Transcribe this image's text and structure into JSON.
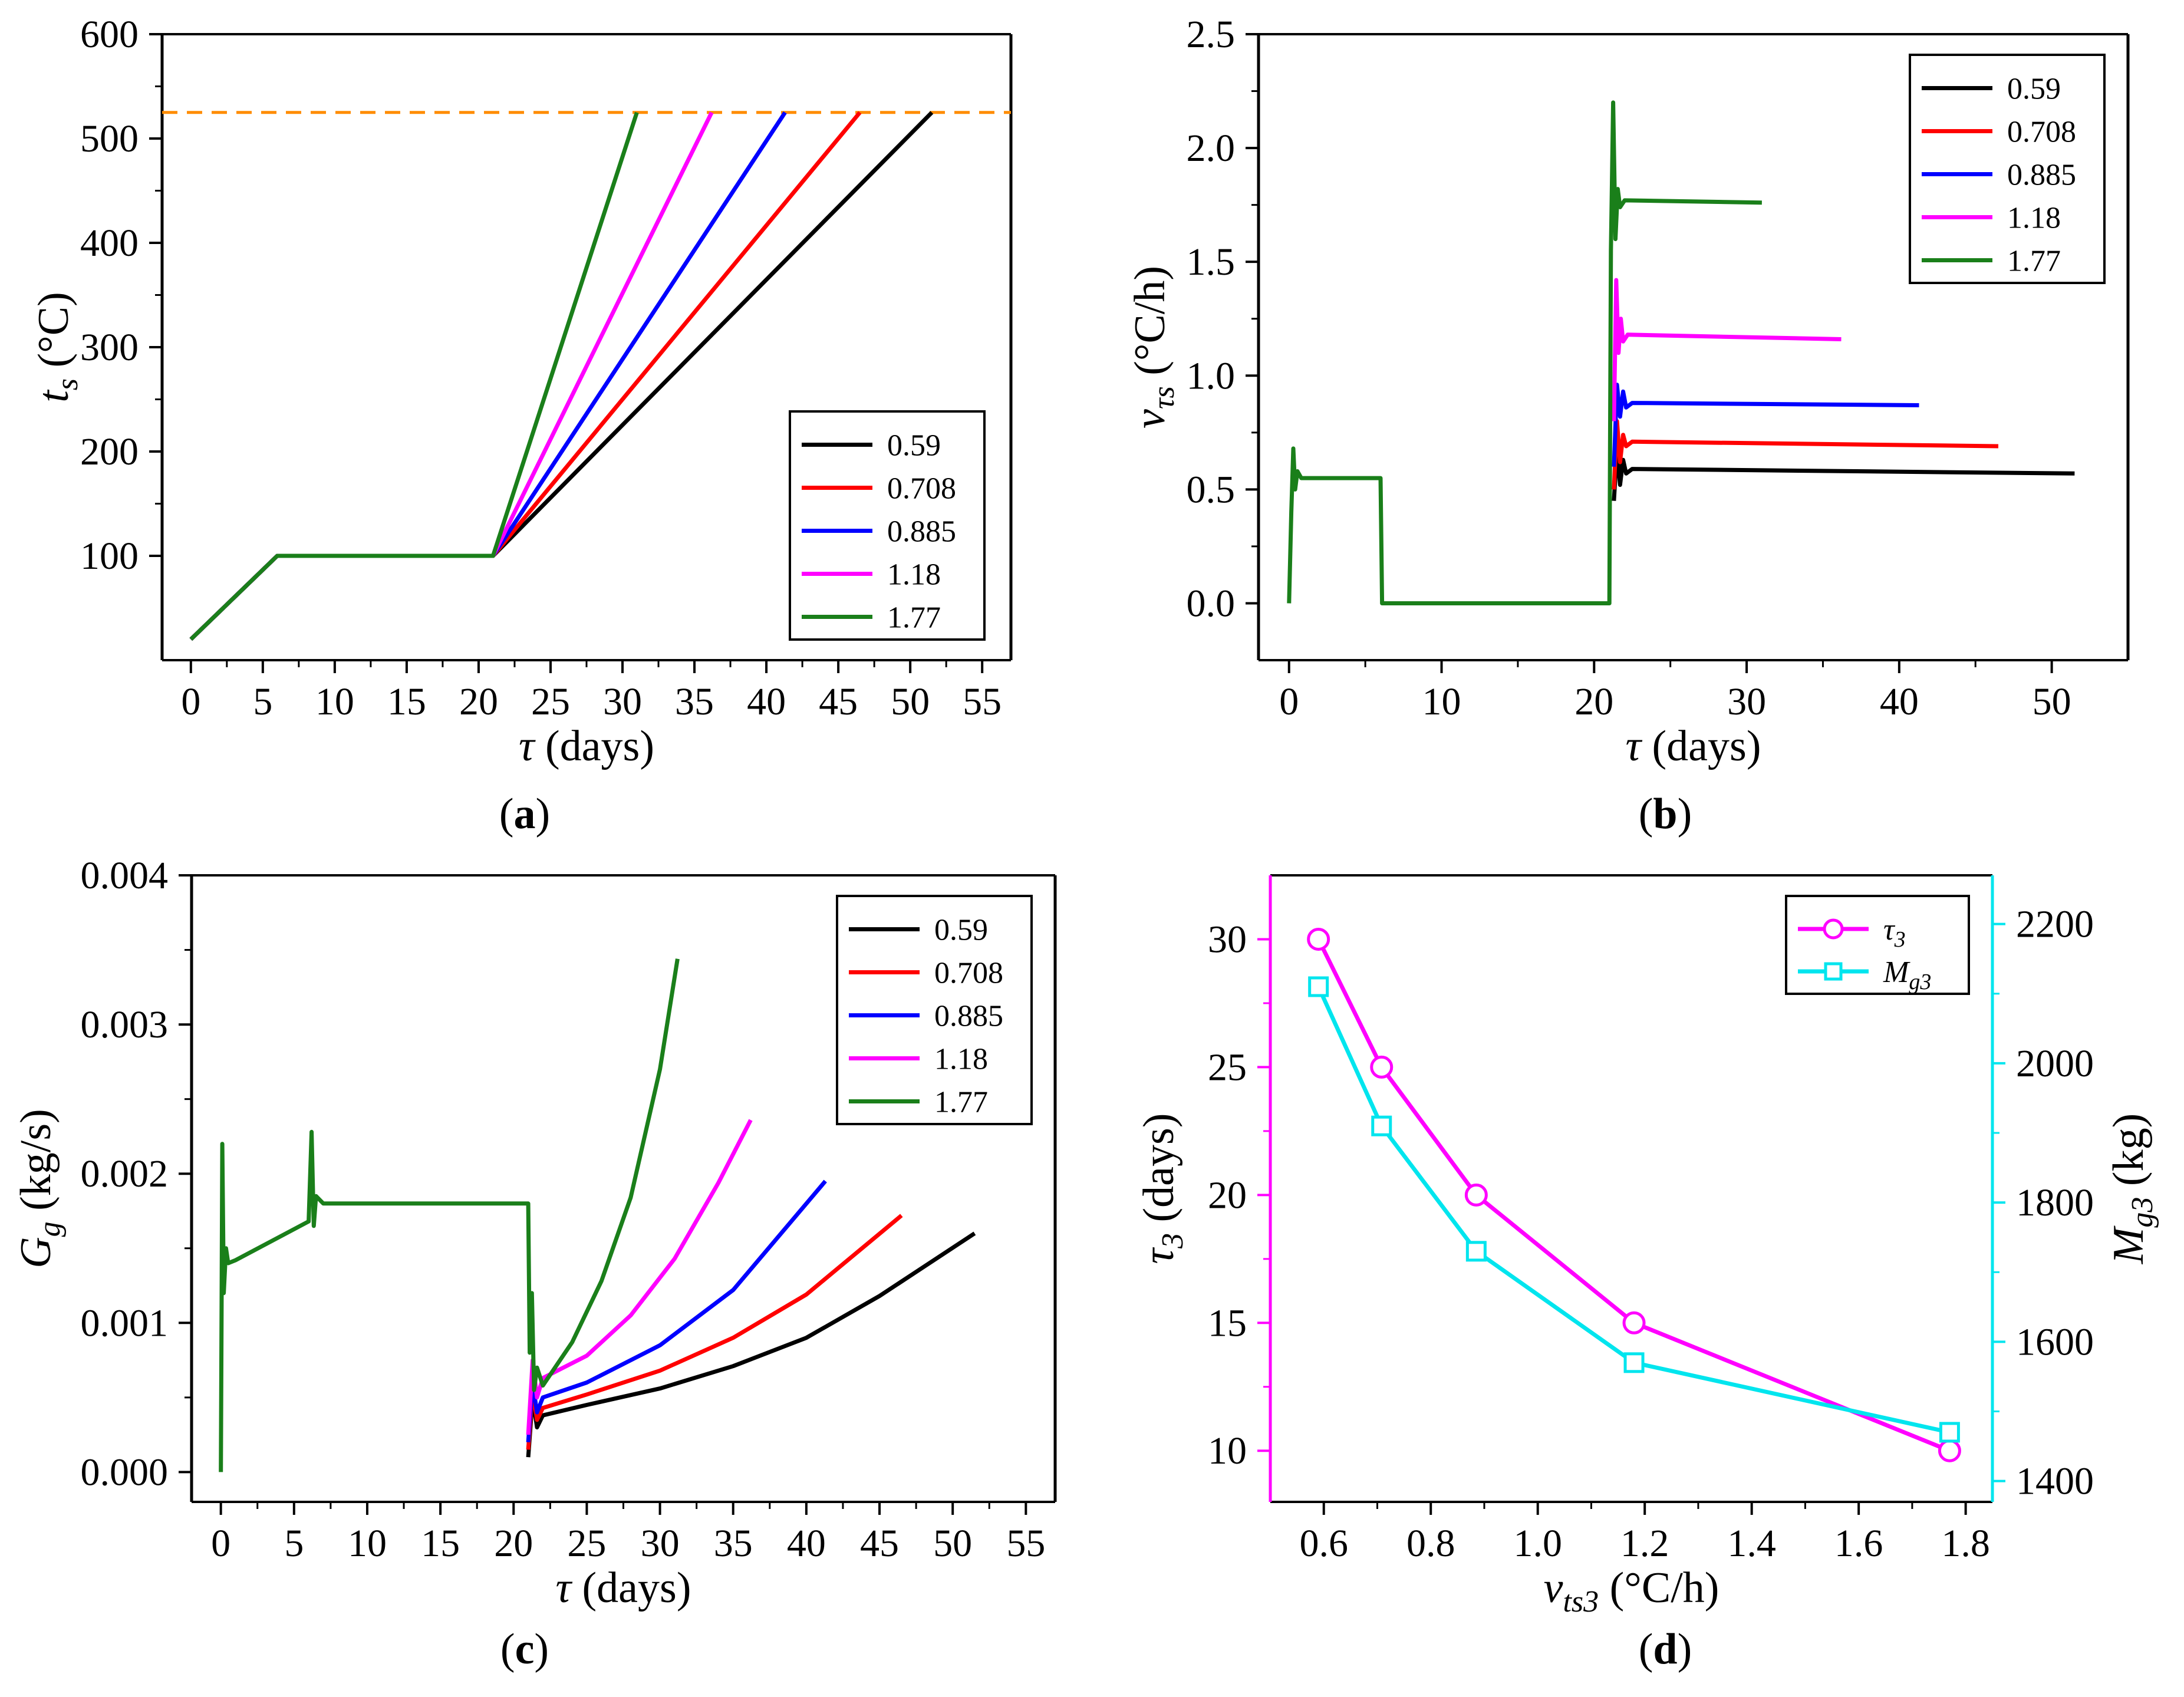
{
  "colors": {
    "0.59": "#000000",
    "0.708": "#ff0000",
    "0.885": "#0000ff",
    "1.18": "#ff00ff",
    "1.77": "#1a7f1a",
    "reference_line": "#ff8c00",
    "tau3": "#ff00ff",
    "mg3": "#00e5ee"
  },
  "chart_data": [
    {
      "panel": "a",
      "caption": "(a)",
      "type": "line",
      "xlabel": "τ (days)",
      "ylabel": "t_s (°C)",
      "ylabel_parts": {
        "symbol": "t",
        "sub": "s",
        "unit": " (°C)"
      },
      "xlim": [
        -2,
        57
      ],
      "ylim": [
        0,
        600
      ],
      "xticks": [
        0,
        5,
        10,
        15,
        20,
        25,
        30,
        35,
        40,
        45,
        50,
        55
      ],
      "yticks": [
        100,
        200,
        300,
        400,
        500,
        600
      ],
      "reference_line": {
        "y": 525,
        "style": "dashed"
      },
      "legend": {
        "position": "lower-right",
        "entries": [
          "0.59",
          "0.708",
          "0.885",
          "1.18",
          "1.77"
        ]
      },
      "series": [
        {
          "name": "0.59",
          "x": [
            0,
            6,
            21,
            51.5
          ],
          "y": [
            20,
            100,
            100,
            525
          ]
        },
        {
          "name": "0.708",
          "x": [
            0,
            6,
            21,
            46.5
          ],
          "y": [
            20,
            100,
            100,
            525
          ]
        },
        {
          "name": "0.885",
          "x": [
            0,
            6,
            21,
            41.3
          ],
          "y": [
            20,
            100,
            100,
            525
          ]
        },
        {
          "name": "1.18",
          "x": [
            0,
            6,
            21,
            36.2
          ],
          "y": [
            20,
            100,
            100,
            525
          ]
        },
        {
          "name": "1.77",
          "x": [
            0,
            6,
            21,
            31
          ],
          "y": [
            20,
            100,
            100,
            525
          ]
        }
      ]
    },
    {
      "panel": "b",
      "caption": "(b)",
      "type": "line",
      "xlabel": "τ (days)",
      "ylabel": "v_τs (°C/h)",
      "ylabel_parts": {
        "symbol": "v",
        "sub": "τs",
        "unit": " (°C/h)"
      },
      "xlim": [
        -2,
        55
      ],
      "ylim": [
        -0.25,
        2.5
      ],
      "xticks": [
        0,
        10,
        20,
        30,
        40,
        50
      ],
      "yticks": [
        0.0,
        0.5,
        1.0,
        1.5,
        2.0,
        2.5
      ],
      "ytick_labels": [
        "0.0",
        "0.5",
        "1.0",
        "1.5",
        "2.0",
        "2.5"
      ],
      "legend": {
        "position": "top-right",
        "entries": [
          "0.59",
          "0.708",
          "0.885",
          "1.18",
          "1.77"
        ]
      },
      "series": [
        {
          "name": "0.59",
          "x": [
            21.3,
            21.5,
            21.7,
            21.9,
            22.1,
            22.5,
            51.5
          ],
          "y": [
            0.45,
            0.68,
            0.52,
            0.63,
            0.57,
            0.59,
            0.57
          ]
        },
        {
          "name": "0.708",
          "x": [
            21.3,
            21.5,
            21.7,
            21.9,
            22.1,
            22.5,
            46.5
          ],
          "y": [
            0.5,
            0.8,
            0.62,
            0.74,
            0.69,
            0.71,
            0.69
          ]
        },
        {
          "name": "0.885",
          "x": [
            21.3,
            21.5,
            21.7,
            21.9,
            22.1,
            22.5,
            41.3
          ],
          "y": [
            0.6,
            0.96,
            0.82,
            0.93,
            0.86,
            0.88,
            0.87
          ]
        },
        {
          "name": "1.18",
          "x": [
            21.3,
            21.45,
            21.6,
            21.75,
            21.9,
            22.2,
            36.2
          ],
          "y": [
            0.8,
            1.42,
            1.1,
            1.25,
            1.15,
            1.18,
            1.16
          ]
        },
        {
          "name": "1.77",
          "x": [
            0,
            0.15,
            0.28,
            0.4,
            0.55,
            0.8,
            6.0,
            6.1,
            21.0,
            21.1,
            21.25,
            21.4,
            21.55,
            21.7,
            22.0,
            31.0
          ],
          "y": [
            0,
            0.4,
            0.68,
            0.5,
            0.58,
            0.55,
            0.55,
            0,
            0,
            1.55,
            2.2,
            1.6,
            1.82,
            1.74,
            1.77,
            1.76
          ]
        }
      ]
    },
    {
      "panel": "c",
      "caption": "(c)",
      "type": "line",
      "xlabel": "τ (days)",
      "ylabel": "G_g (kg/s)",
      "ylabel_parts": {
        "symbol": "G",
        "sub": "g",
        "unit": " (kg/s)"
      },
      "xlim": [
        -2,
        57
      ],
      "ylim": [
        -0.0002,
        0.004
      ],
      "xticks": [
        0,
        5,
        10,
        15,
        20,
        25,
        30,
        35,
        40,
        45,
        50,
        55
      ],
      "yticks": [
        0.0,
        0.001,
        0.002,
        0.003,
        0.004
      ],
      "ytick_labels": [
        "0.000",
        "0.001",
        "0.002",
        "0.003",
        "0.004"
      ],
      "legend": {
        "position": "top-right",
        "entries": [
          "0.59",
          "0.708",
          "0.885",
          "1.18",
          "1.77"
        ]
      },
      "series": [
        {
          "name": "0.59",
          "x": [
            21,
            21.3,
            21.6,
            22,
            25,
            30,
            35,
            40,
            45,
            51.5
          ],
          "y": [
            0.0001,
            0.0005,
            0.0003,
            0.00038,
            0.00045,
            0.00056,
            0.00071,
            0.0009,
            0.00118,
            0.0016
          ]
        },
        {
          "name": "0.708",
          "x": [
            21,
            21.3,
            21.6,
            22,
            25,
            30,
            35,
            40,
            46.5
          ],
          "y": [
            0.00015,
            0.00055,
            0.00035,
            0.00043,
            0.00052,
            0.00068,
            0.0009,
            0.00119,
            0.00172
          ]
        },
        {
          "name": "0.885",
          "x": [
            21,
            21.3,
            21.6,
            22,
            25,
            30,
            35,
            41.3
          ],
          "y": [
            0.0002,
            0.0006,
            0.0004,
            0.0005,
            0.0006,
            0.00085,
            0.00122,
            0.00195
          ]
        },
        {
          "name": "1.18",
          "x": [
            21,
            21.3,
            21.6,
            22,
            25,
            28,
            31,
            34,
            36.2
          ],
          "y": [
            0.00025,
            0.00075,
            0.0005,
            0.00063,
            0.00078,
            0.00105,
            0.00143,
            0.00194,
            0.00236
          ]
        },
        {
          "name": "1.77",
          "x": [
            0,
            0.1,
            0.2,
            0.35,
            0.5,
            1.0,
            6.0,
            6.2,
            6.35,
            6.5,
            7.0,
            21.0,
            21.1,
            21.25,
            21.4,
            21.6,
            22.0,
            24,
            26,
            28,
            30,
            31.2
          ],
          "y": [
            0,
            0.0022,
            0.0012,
            0.0015,
            0.0014,
            0.00142,
            0.00168,
            0.00228,
            0.00165,
            0.00185,
            0.0018,
            0.0018,
            0.0008,
            0.0012,
            0.00055,
            0.0007,
            0.00058,
            0.00087,
            0.00128,
            0.00184,
            0.0027,
            0.00344
          ]
        }
      ]
    },
    {
      "panel": "d",
      "caption": "(d)",
      "type": "line",
      "xlabel": "v_ts3 (°C/h)",
      "xlabel_parts": {
        "symbol": "v",
        "sub": "ts3",
        "unit": " (°C/h)"
      },
      "ylabel": "τ_3 (days)",
      "ylabel_parts": {
        "symbol": "τ",
        "sub": "3",
        "unit": " (days)"
      },
      "y2label": "M_g3 (kg)",
      "y2label_parts": {
        "symbol": "M",
        "sub": "g3",
        "unit": " (kg)"
      },
      "xlim": [
        0.5,
        1.85
      ],
      "ylim": [
        8,
        32.5
      ],
      "y2lim": [
        1370,
        2270
      ],
      "xticks": [
        0.6,
        0.8,
        1.0,
        1.2,
        1.4,
        1.6,
        1.8
      ],
      "xtick_labels": [
        "0.6",
        "0.8",
        "1.0",
        "1.2",
        "1.4",
        "1.6",
        "1.8"
      ],
      "yticks": [
        10,
        15,
        20,
        25,
        30
      ],
      "y2ticks": [
        1400,
        1600,
        1800,
        2000,
        2200
      ],
      "legend": {
        "position": "top-right",
        "entries": [
          "τ3",
          "Mg3"
        ]
      },
      "series": [
        {
          "name": "τ3",
          "axis": "left",
          "marker": "circle",
          "x": [
            0.59,
            0.708,
            0.885,
            1.18,
            1.77
          ],
          "y": [
            30,
            25,
            20,
            15,
            10
          ]
        },
        {
          "name": "Mg3",
          "axis": "right",
          "marker": "square",
          "x": [
            0.59,
            0.708,
            0.885,
            1.18,
            1.77
          ],
          "y": [
            2110,
            1910,
            1730,
            1570,
            1470
          ]
        }
      ]
    }
  ]
}
